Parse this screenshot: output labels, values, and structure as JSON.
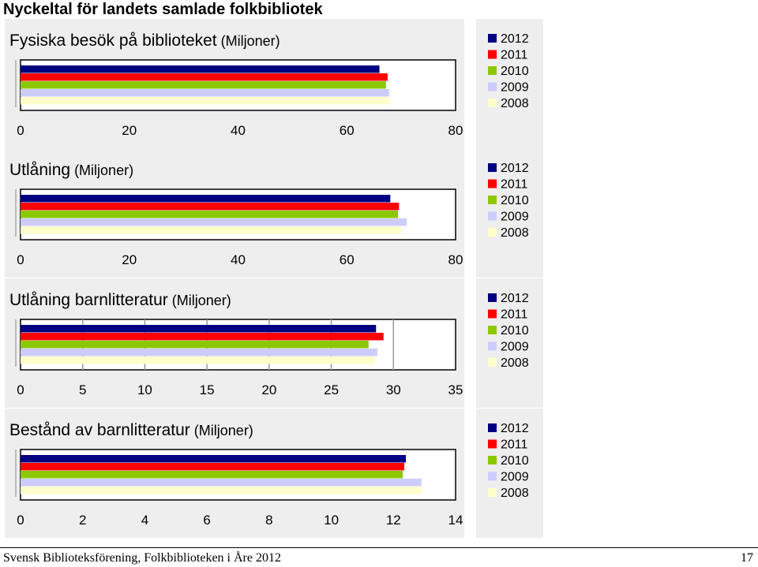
{
  "page": {
    "title": "Nyckeltal för landets samlade folkbibliotek",
    "footer_text": "Svensk Biblioteksförening, Folkbiblioteken i Åre 2012",
    "page_number": "17"
  },
  "colors": {
    "2012": "#000080",
    "2011": "#ff0000",
    "2010": "#8cc800",
    "2009": "#ccccff",
    "2008": "#ffffcc",
    "panel_background": "#eeeeee"
  },
  "chart_data": [
    {
      "type": "bar",
      "orientation": "horizontal",
      "title": "Fysiska besök på biblioteket",
      "unit": "(Miljoner)",
      "xlim": [
        0,
        80
      ],
      "ticks": [
        "0",
        "20",
        "40",
        "60",
        "80"
      ],
      "series": [
        {
          "name": "2012",
          "value": 66
        },
        {
          "name": "2011",
          "value": 67.5
        },
        {
          "name": "2010",
          "value": 67.2
        },
        {
          "name": "2009",
          "value": 67.8
        },
        {
          "name": "2008",
          "value": 67.9
        }
      ],
      "grid": false,
      "legend_position": "right"
    },
    {
      "type": "bar",
      "orientation": "horizontal",
      "title": "Utlåning",
      "unit": "(Miljoner)",
      "xlim": [
        0,
        80
      ],
      "ticks": [
        "0",
        "20",
        "40",
        "60",
        "80"
      ],
      "series": [
        {
          "name": "2012",
          "value": 68
        },
        {
          "name": "2011",
          "value": 69.6
        },
        {
          "name": "2010",
          "value": 69.4
        },
        {
          "name": "2009",
          "value": 71
        },
        {
          "name": "2008",
          "value": 70
        }
      ],
      "grid": false,
      "legend_position": "right"
    },
    {
      "type": "bar",
      "orientation": "horizontal",
      "title": "Utlåning barnlitteratur",
      "unit": "(Miljoner)",
      "xlim": [
        0,
        35
      ],
      "ticks": [
        "0",
        "5",
        "10",
        "15",
        "20",
        "25",
        "30",
        "35"
      ],
      "series": [
        {
          "name": "2012",
          "value": 28.6
        },
        {
          "name": "2011",
          "value": 29.2
        },
        {
          "name": "2010",
          "value": 28
        },
        {
          "name": "2009",
          "value": 28.7
        },
        {
          "name": "2008",
          "value": 28.5
        }
      ],
      "grid": true,
      "legend_position": "right"
    },
    {
      "type": "bar",
      "orientation": "horizontal",
      "title": "Bestånd av barnlitteratur",
      "unit": "(Miljoner)",
      "xlim": [
        0,
        14
      ],
      "ticks": [
        "0",
        "2",
        "4",
        "6",
        "8",
        "10",
        "12",
        "14"
      ],
      "series": [
        {
          "name": "2012",
          "value": 12.4
        },
        {
          "name": "2011",
          "value": 12.35
        },
        {
          "name": "2010",
          "value": 12.3
        },
        {
          "name": "2009",
          "value": 12.9
        },
        {
          "name": "2008",
          "value": 12.9
        }
      ],
      "grid": false,
      "legend_position": "right"
    }
  ]
}
